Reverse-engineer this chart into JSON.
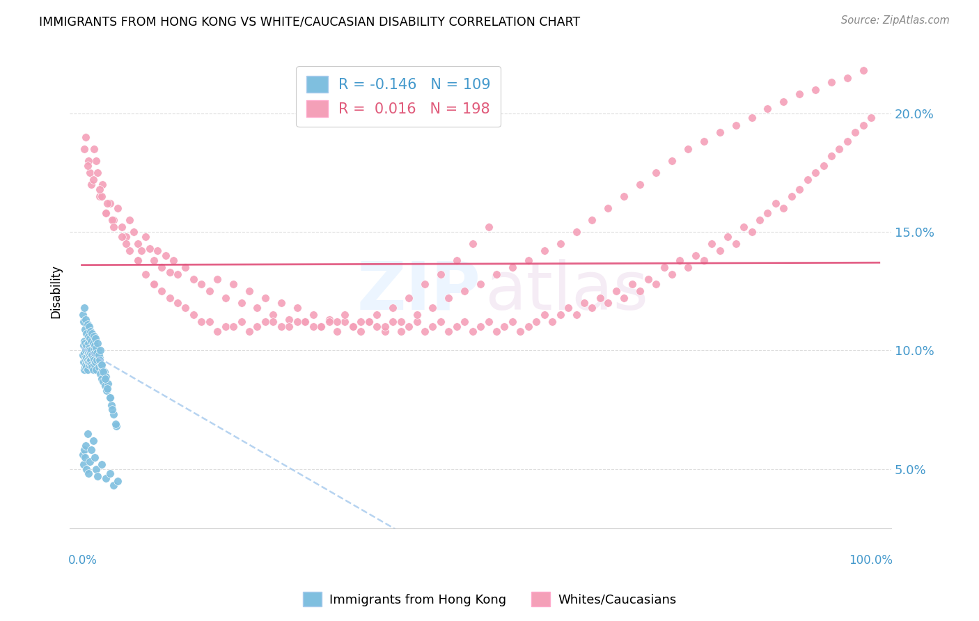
{
  "title": "IMMIGRANTS FROM HONG KONG VS WHITE/CAUCASIAN DISABILITY CORRELATION CHART",
  "source": "Source: ZipAtlas.com",
  "ylabel": "Disability",
  "legend_blue_r": "-0.146",
  "legend_blue_n": "109",
  "legend_pink_r": "0.016",
  "legend_pink_n": "198",
  "legend_blue_label": "Immigrants from Hong Kong",
  "legend_pink_label": "Whites/Caucasians",
  "yticks": [
    0.05,
    0.1,
    0.15,
    0.2
  ],
  "ytick_labels": [
    "5.0%",
    "10.0%",
    "15.0%",
    "20.0%"
  ],
  "blue_color": "#7fbfdf",
  "pink_color": "#f4a0b8",
  "blue_line_color": "#5599cc",
  "pink_line_color": "#e0507a",
  "blue_scatter_x": [
    0.001,
    0.002,
    0.002,
    0.003,
    0.003,
    0.003,
    0.004,
    0.004,
    0.004,
    0.005,
    0.005,
    0.005,
    0.005,
    0.006,
    0.006,
    0.006,
    0.007,
    0.007,
    0.007,
    0.008,
    0.008,
    0.008,
    0.009,
    0.009,
    0.009,
    0.01,
    0.01,
    0.01,
    0.011,
    0.011,
    0.012,
    0.012,
    0.013,
    0.013,
    0.014,
    0.014,
    0.015,
    0.015,
    0.016,
    0.016,
    0.017,
    0.018,
    0.019,
    0.02,
    0.021,
    0.022,
    0.023,
    0.024,
    0.025,
    0.026,
    0.027,
    0.028,
    0.029,
    0.03,
    0.031,
    0.033,
    0.035,
    0.037,
    0.04,
    0.043,
    0.001,
    0.002,
    0.003,
    0.004,
    0.005,
    0.006,
    0.007,
    0.008,
    0.009,
    0.01,
    0.011,
    0.012,
    0.013,
    0.014,
    0.015,
    0.016,
    0.017,
    0.018,
    0.019,
    0.02,
    0.021,
    0.022,
    0.023,
    0.025,
    0.027,
    0.029,
    0.032,
    0.035,
    0.038,
    0.042,
    0.001,
    0.002,
    0.003,
    0.004,
    0.005,
    0.006,
    0.007,
    0.008,
    0.01,
    0.012,
    0.014,
    0.016,
    0.018,
    0.02,
    0.025,
    0.03,
    0.035,
    0.04,
    0.045
  ],
  "blue_scatter_y": [
    0.098,
    0.102,
    0.095,
    0.104,
    0.099,
    0.092,
    0.103,
    0.097,
    0.093,
    0.101,
    0.096,
    0.1,
    0.094,
    0.102,
    0.097,
    0.093,
    0.1,
    0.096,
    0.092,
    0.099,
    0.095,
    0.103,
    0.098,
    0.094,
    0.101,
    0.097,
    0.1,
    0.095,
    0.099,
    0.096,
    0.1,
    0.094,
    0.098,
    0.093,
    0.097,
    0.092,
    0.096,
    0.101,
    0.094,
    0.099,
    0.095,
    0.092,
    0.096,
    0.1,
    0.093,
    0.097,
    0.09,
    0.094,
    0.088,
    0.092,
    0.087,
    0.091,
    0.085,
    0.089,
    0.083,
    0.086,
    0.08,
    0.077,
    0.073,
    0.068,
    0.115,
    0.112,
    0.118,
    0.109,
    0.113,
    0.107,
    0.111,
    0.106,
    0.11,
    0.105,
    0.108,
    0.104,
    0.107,
    0.103,
    0.106,
    0.102,
    0.105,
    0.101,
    0.099,
    0.103,
    0.098,
    0.096,
    0.1,
    0.094,
    0.091,
    0.088,
    0.084,
    0.08,
    0.075,
    0.069,
    0.056,
    0.052,
    0.058,
    0.055,
    0.06,
    0.05,
    0.065,
    0.048,
    0.053,
    0.058,
    0.062,
    0.055,
    0.05,
    0.047,
    0.052,
    0.046,
    0.048,
    0.043,
    0.045
  ],
  "pink_scatter_x": [
    0.005,
    0.01,
    0.015,
    0.018,
    0.022,
    0.026,
    0.03,
    0.035,
    0.04,
    0.045,
    0.05,
    0.055,
    0.06,
    0.065,
    0.07,
    0.075,
    0.08,
    0.085,
    0.09,
    0.095,
    0.1,
    0.105,
    0.11,
    0.115,
    0.12,
    0.13,
    0.14,
    0.15,
    0.16,
    0.17,
    0.18,
    0.19,
    0.2,
    0.21,
    0.22,
    0.23,
    0.24,
    0.25,
    0.26,
    0.27,
    0.28,
    0.29,
    0.3,
    0.31,
    0.32,
    0.33,
    0.34,
    0.35,
    0.36,
    0.37,
    0.38,
    0.39,
    0.4,
    0.41,
    0.42,
    0.43,
    0.44,
    0.45,
    0.46,
    0.47,
    0.48,
    0.49,
    0.5,
    0.51,
    0.52,
    0.53,
    0.54,
    0.55,
    0.56,
    0.57,
    0.58,
    0.59,
    0.6,
    0.61,
    0.62,
    0.63,
    0.64,
    0.65,
    0.66,
    0.67,
    0.68,
    0.69,
    0.7,
    0.71,
    0.72,
    0.73,
    0.74,
    0.75,
    0.76,
    0.77,
    0.78,
    0.79,
    0.8,
    0.81,
    0.82,
    0.83,
    0.84,
    0.85,
    0.86,
    0.87,
    0.88,
    0.89,
    0.9,
    0.91,
    0.92,
    0.93,
    0.94,
    0.95,
    0.96,
    0.97,
    0.98,
    0.99,
    0.008,
    0.012,
    0.02,
    0.025,
    0.032,
    0.038,
    0.05,
    0.06,
    0.07,
    0.08,
    0.09,
    0.1,
    0.12,
    0.14,
    0.16,
    0.18,
    0.2,
    0.22,
    0.24,
    0.26,
    0.28,
    0.3,
    0.32,
    0.34,
    0.36,
    0.38,
    0.4,
    0.42,
    0.44,
    0.46,
    0.48,
    0.5,
    0.52,
    0.54,
    0.56,
    0.58,
    0.6,
    0.62,
    0.64,
    0.66,
    0.68,
    0.7,
    0.72,
    0.74,
    0.76,
    0.78,
    0.8,
    0.82,
    0.84,
    0.86,
    0.88,
    0.9,
    0.92,
    0.94,
    0.96,
    0.98,
    0.003,
    0.007,
    0.014,
    0.022,
    0.03,
    0.04,
    0.055,
    0.07,
    0.09,
    0.11,
    0.13,
    0.15,
    0.17,
    0.19,
    0.21,
    0.23,
    0.25,
    0.27,
    0.29,
    0.31,
    0.33,
    0.35,
    0.37,
    0.39,
    0.41,
    0.43,
    0.45,
    0.47,
    0.49,
    0.51
  ],
  "pink_scatter_y": [
    0.19,
    0.175,
    0.185,
    0.18,
    0.165,
    0.17,
    0.158,
    0.162,
    0.155,
    0.16,
    0.152,
    0.148,
    0.155,
    0.15,
    0.145,
    0.142,
    0.148,
    0.143,
    0.138,
    0.142,
    0.135,
    0.14,
    0.133,
    0.138,
    0.132,
    0.135,
    0.13,
    0.128,
    0.125,
    0.13,
    0.122,
    0.128,
    0.12,
    0.125,
    0.118,
    0.122,
    0.115,
    0.12,
    0.113,
    0.118,
    0.112,
    0.115,
    0.11,
    0.113,
    0.108,
    0.112,
    0.11,
    0.108,
    0.112,
    0.11,
    0.108,
    0.112,
    0.108,
    0.11,
    0.112,
    0.108,
    0.11,
    0.112,
    0.108,
    0.11,
    0.112,
    0.108,
    0.11,
    0.112,
    0.108,
    0.11,
    0.112,
    0.108,
    0.11,
    0.112,
    0.115,
    0.112,
    0.115,
    0.118,
    0.115,
    0.12,
    0.118,
    0.122,
    0.12,
    0.125,
    0.122,
    0.128,
    0.125,
    0.13,
    0.128,
    0.135,
    0.132,
    0.138,
    0.135,
    0.14,
    0.138,
    0.145,
    0.142,
    0.148,
    0.145,
    0.152,
    0.15,
    0.155,
    0.158,
    0.162,
    0.16,
    0.165,
    0.168,
    0.172,
    0.175,
    0.178,
    0.182,
    0.185,
    0.188,
    0.192,
    0.195,
    0.198,
    0.18,
    0.17,
    0.175,
    0.165,
    0.162,
    0.155,
    0.148,
    0.142,
    0.138,
    0.132,
    0.128,
    0.125,
    0.12,
    0.115,
    0.112,
    0.11,
    0.112,
    0.11,
    0.112,
    0.11,
    0.112,
    0.11,
    0.112,
    0.11,
    0.112,
    0.11,
    0.112,
    0.115,
    0.118,
    0.122,
    0.125,
    0.128,
    0.132,
    0.135,
    0.138,
    0.142,
    0.145,
    0.15,
    0.155,
    0.16,
    0.165,
    0.17,
    0.175,
    0.18,
    0.185,
    0.188,
    0.192,
    0.195,
    0.198,
    0.202,
    0.205,
    0.208,
    0.21,
    0.213,
    0.215,
    0.218,
    0.185,
    0.178,
    0.172,
    0.168,
    0.158,
    0.152,
    0.145,
    0.138,
    0.128,
    0.122,
    0.118,
    0.112,
    0.108,
    0.11,
    0.108,
    0.112,
    0.11,
    0.112,
    0.11,
    0.112,
    0.115,
    0.112,
    0.115,
    0.118,
    0.122,
    0.128,
    0.132,
    0.138,
    0.145,
    0.152
  ]
}
